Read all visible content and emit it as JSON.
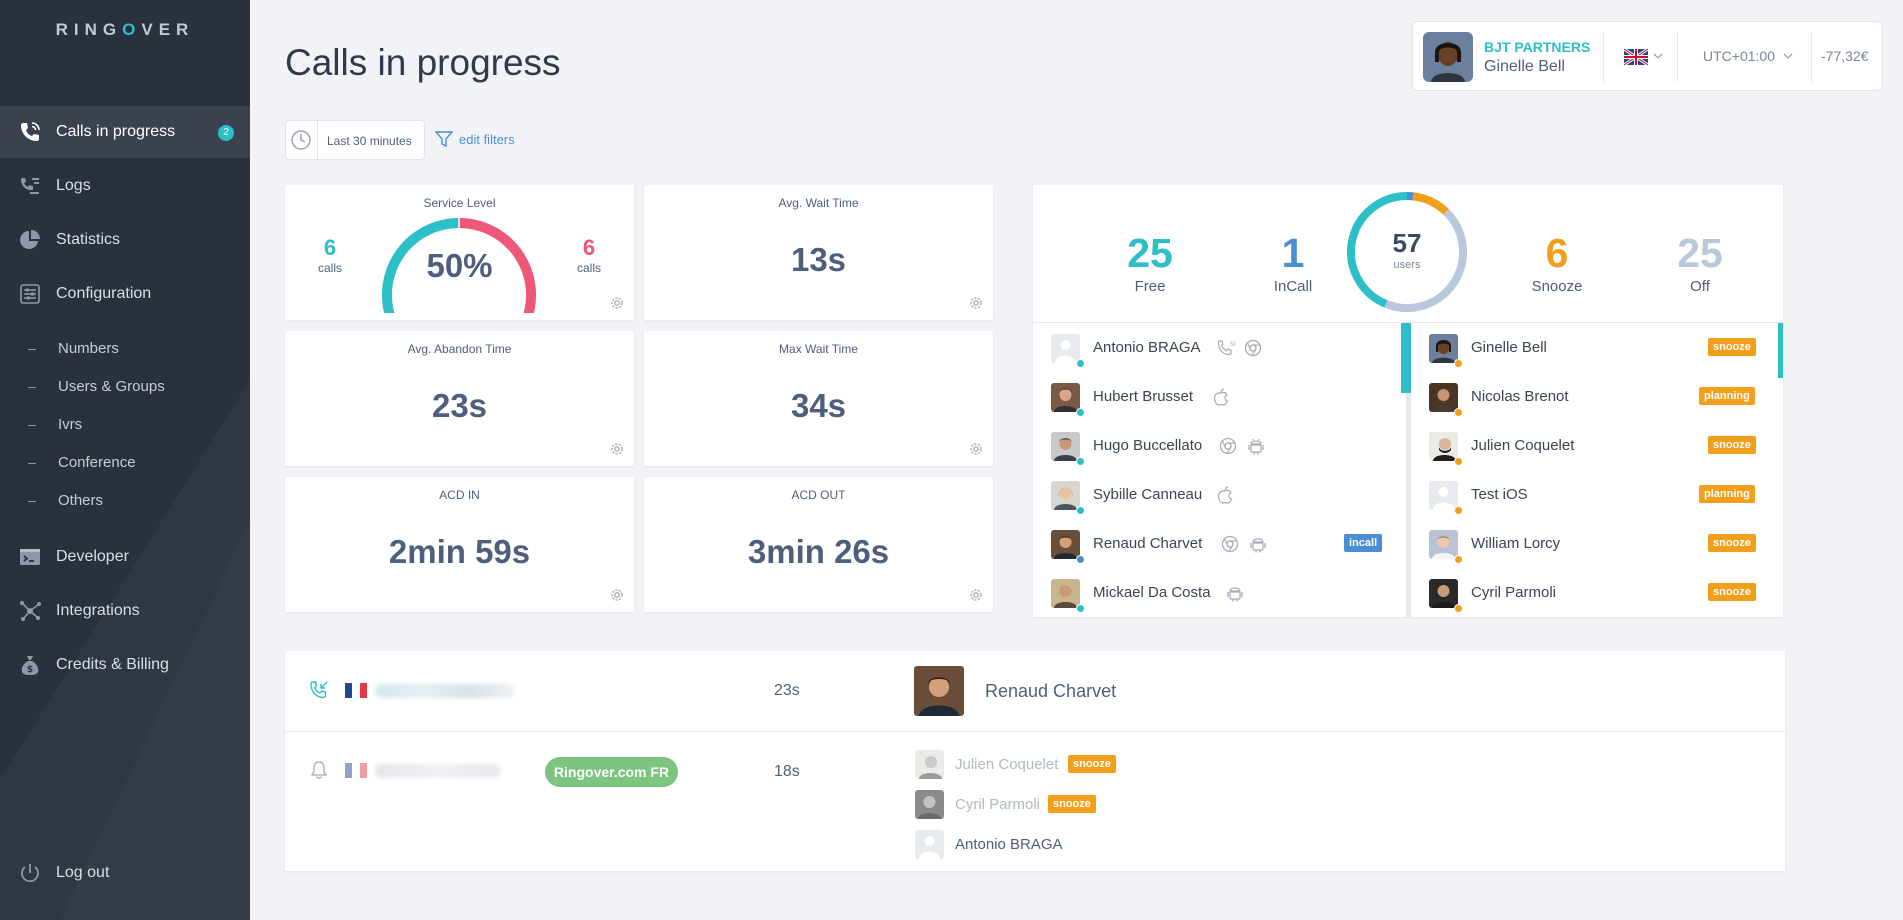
{
  "sidebar": {
    "logo": {
      "pre": "RING",
      "o": "O",
      "post": "VER"
    },
    "items": [
      {
        "label": "Calls in progress",
        "badge": "2"
      },
      {
        "label": "Logs"
      },
      {
        "label": "Statistics"
      },
      {
        "label": "Configuration"
      }
    ],
    "sub_items": [
      "Numbers",
      "Users & Groups",
      "Ivrs",
      "Conference",
      "Others"
    ],
    "items2": [
      {
        "label": "Developer"
      },
      {
        "label": "Integrations"
      },
      {
        "label": "Credits & Billing"
      }
    ],
    "logout": "Log out"
  },
  "header": {
    "title": "Calls in progress",
    "filter_range": "Last 30 minutes",
    "edit_filters": "edit filters"
  },
  "account": {
    "company": "BJT PARTNERS",
    "user": "Ginelle Bell",
    "timezone": "UTC+01:00",
    "balance": "-77,32€"
  },
  "stats": {
    "service_level": {
      "title": "Service Level",
      "value": "50%",
      "fraction": 0.5,
      "left_count": "6",
      "left_unit": "calls",
      "right_count": "6",
      "right_unit": "calls"
    },
    "avg_wait": {
      "title": "Avg. Wait Time",
      "value": "13s"
    },
    "avg_abandon": {
      "title": "Avg. Abandon Time",
      "value": "23s"
    },
    "max_wait": {
      "title": "Max Wait Time",
      "value": "34s"
    },
    "acd_in": {
      "title": "ACD IN",
      "value": "2min 59s"
    },
    "acd_out": {
      "title": "ACD OUT",
      "value": "3min 26s"
    }
  },
  "users_summary": {
    "free": {
      "count": "25",
      "label": "Free"
    },
    "incall": {
      "count": "1",
      "label": "InCall"
    },
    "total": {
      "count": "57",
      "label": "users"
    },
    "snooze": {
      "count": "6",
      "label": "Snooze"
    },
    "off": {
      "count": "25",
      "label": "Off"
    }
  },
  "users_left": [
    {
      "name": "Antonio BRAGA",
      "devices": [
        "phone",
        "chrome"
      ]
    },
    {
      "name": "Hubert Brusset",
      "devices": [
        "apple"
      ]
    },
    {
      "name": "Hugo Buccellato",
      "devices": [
        "chrome",
        "android"
      ]
    },
    {
      "name": "Sybille Canneau",
      "devices": [
        "apple"
      ]
    },
    {
      "name": "Renaud Charvet",
      "devices": [
        "chrome",
        "android"
      ],
      "tag": "incall"
    },
    {
      "name": "Mickael Da Costa",
      "devices": [
        "android"
      ]
    }
  ],
  "users_right": [
    {
      "name": "Ginelle Bell",
      "tag": "snooze"
    },
    {
      "name": "Nicolas Brenot",
      "tag": "planning"
    },
    {
      "name": "Julien Coquelet",
      "tag": "snooze"
    },
    {
      "name": "Test iOS",
      "tag": "planning"
    },
    {
      "name": "William Lorcy",
      "tag": "snooze"
    },
    {
      "name": "Cyril Parmoli",
      "tag": "snooze"
    }
  ],
  "calls": {
    "active": {
      "duration": "23s",
      "agent": "Renaud Charvet"
    },
    "ringing": {
      "duration": "18s",
      "queue": "Ringover.com FR",
      "agents": [
        {
          "name": "Julien Coquelet",
          "tag": "snooze"
        },
        {
          "name": "Cyril Parmoli",
          "tag": "snooze"
        },
        {
          "name": "Antonio BRAGA"
        }
      ]
    }
  },
  "colors": {
    "teal": "#2dbfc8",
    "pink": "#ef5778",
    "blue": "#4a8fd6",
    "orange": "#f2a01c",
    "off": "#b9c8da",
    "green": "#7cc47f"
  }
}
